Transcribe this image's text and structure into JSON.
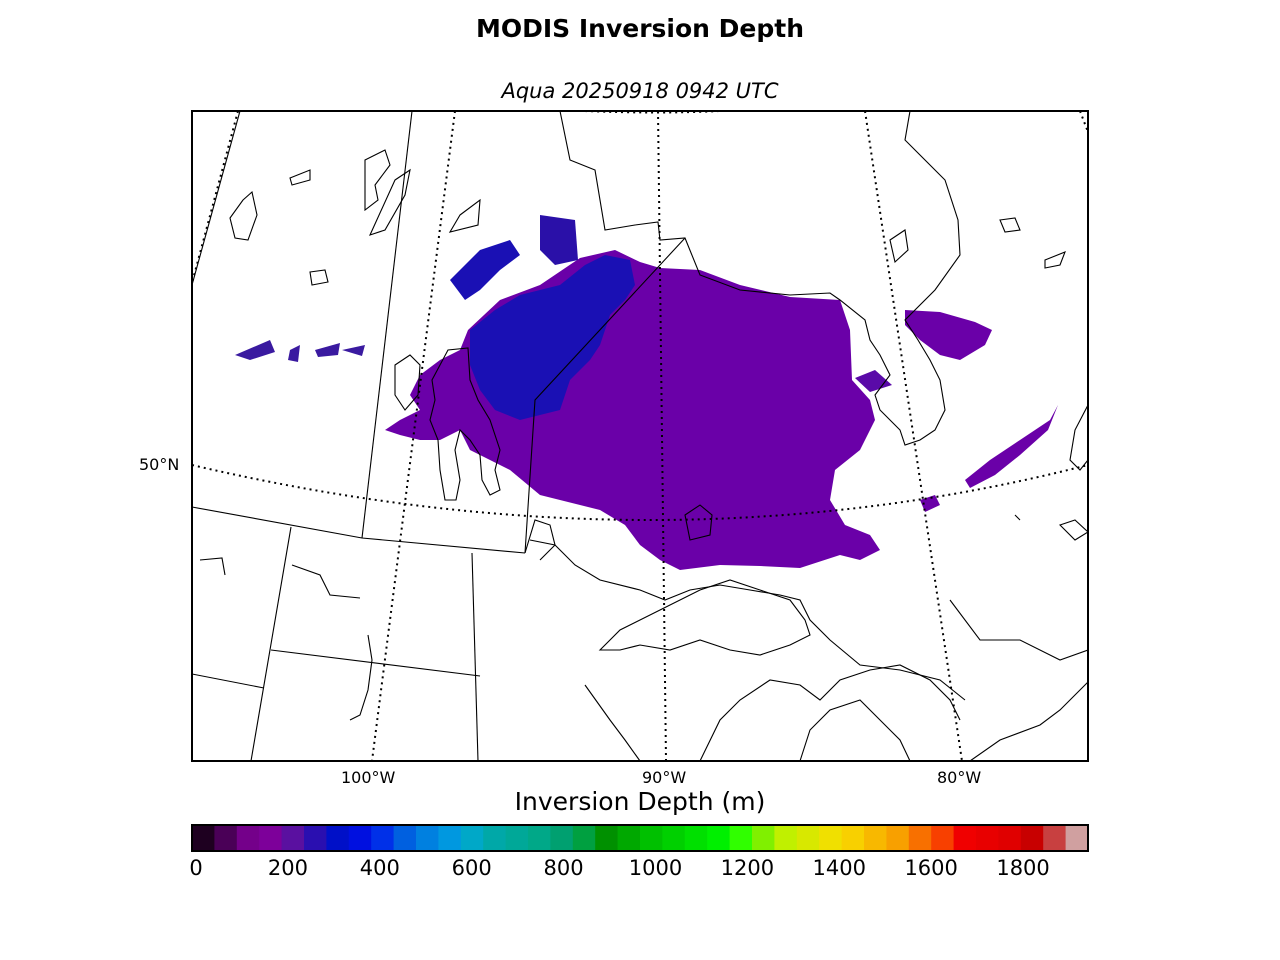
{
  "title": "MODIS Inversion Depth",
  "subtitle": "Aqua 20250918 0942 UTC",
  "map": {
    "projection": "lambert-conformal",
    "latitude_labels": [
      {
        "lat": 50,
        "text": "50°N"
      }
    ],
    "longitude_labels": [
      {
        "lon": -100,
        "text": "100°W"
      },
      {
        "lon": -90,
        "text": "90°W"
      },
      {
        "lon": -80,
        "text": "80°W"
      }
    ],
    "grid_style": "dotted",
    "data_colors": {
      "dominant": "#6a00a8",
      "secondary": "#1a10b4",
      "edge": "#3a1aa0"
    }
  },
  "colorbar": {
    "label": "Inversion Depth (m)",
    "min": 0,
    "max": 1950,
    "step": 50,
    "ticks": [
      0,
      200,
      400,
      600,
      800,
      1000,
      1200,
      1400,
      1600,
      1800
    ],
    "tick_labels": [
      "0",
      "200",
      "400",
      "600",
      "800",
      "1000",
      "1200",
      "1400",
      "1600",
      "1800"
    ],
    "colors": [
      "#1e0020",
      "#4a0057",
      "#74008a",
      "#7d009a",
      "#5a10a0",
      "#2a0fb0",
      "#0010c8",
      "#0010e0",
      "#0030e8",
      "#0060e0",
      "#0080e0",
      "#0098e0",
      "#00a8c8",
      "#00a8a8",
      "#00a898",
      "#00a888",
      "#00a070",
      "#00a040",
      "#009000",
      "#00a800",
      "#00c000",
      "#00d000",
      "#00e000",
      "#00f000",
      "#30ff00",
      "#80f000",
      "#c0f000",
      "#d8e800",
      "#f0e000",
      "#f8d000",
      "#f8b800",
      "#f8a000",
      "#f87000",
      "#f84000",
      "#f00000",
      "#e80000",
      "#e00000",
      "#c80000",
      "#c84040",
      "#d0a0a0"
    ]
  }
}
